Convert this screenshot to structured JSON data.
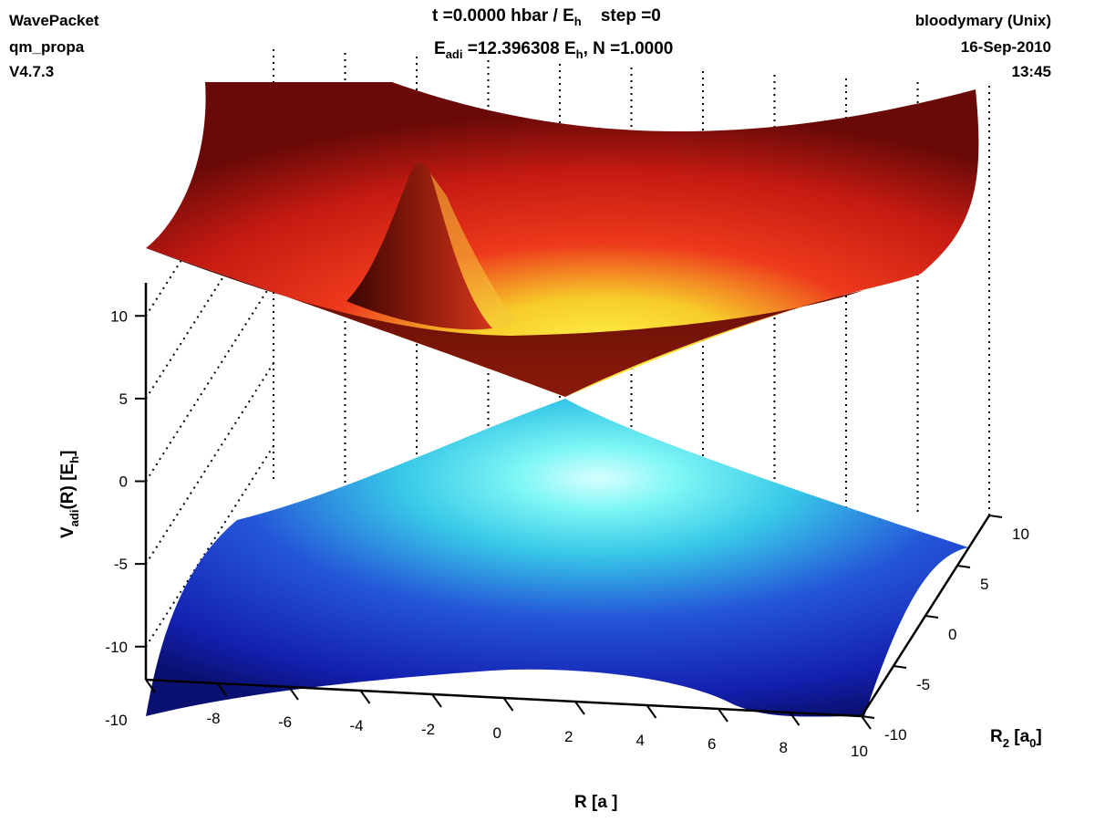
{
  "header": {
    "program": "WavePacket",
    "module": "qm_propa",
    "version": "V4.7.3",
    "time_prefix": "t =0.0000 hbar / E",
    "time_sub": "h",
    "step": "step =0",
    "energy_prefix": "E",
    "energy_sub1": "adi",
    "energy_mid": " =12.396308 E",
    "energy_sub2": "h",
    "norm": ", N =1.0000",
    "host": "bloodymary (Unix)",
    "date": "16-Sep-2010",
    "clock": "13:45"
  },
  "chart_data": {
    "type": "surface",
    "description_surfaces": [
      "upper adiabatic potential",
      "lower adiabatic potential"
    ],
    "x_axis": {
      "label_main": "R  [a ]",
      "ticks": [
        "-10",
        "-8",
        "-6",
        "-4",
        "-2",
        "0",
        "2",
        "4",
        "6",
        "8",
        "10"
      ],
      "range": [
        -10,
        10
      ]
    },
    "y_axis": {
      "label_main": "R",
      "label_sub": "2",
      "label_bracket_open": " [a",
      "label_bracket_sub": "0",
      "label_bracket_close": "]",
      "ticks": [
        "-10",
        "-5",
        "0",
        "5",
        "10"
      ],
      "range": [
        -10,
        10
      ]
    },
    "z_axis": {
      "label_main": "V",
      "label_sub1": "adi",
      "label_mid": "(R) [E",
      "label_sub2": "h",
      "label_close": "]",
      "ticks": [
        "-10",
        "-5",
        "0",
        "5",
        "10"
      ],
      "range": [
        -12,
        12
      ]
    },
    "conical_intersection": {
      "R1": 0,
      "R2": 0,
      "V": 0
    },
    "wavepacket": {
      "R1_center": -2,
      "R2_center": 0
    },
    "colors": {
      "upper_high": "#d41a10",
      "upper_mid": "#f5e23a",
      "lower_low": "#1420b8",
      "lower_mid": "#4ff0ee",
      "grid": "#000000"
    }
  }
}
